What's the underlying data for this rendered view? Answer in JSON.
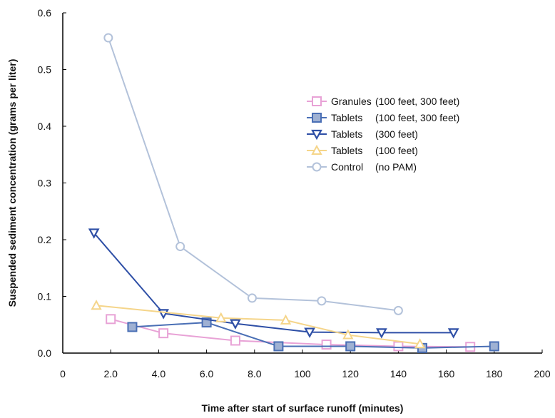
{
  "chart_data": {
    "type": "line",
    "xlabel": "Time after start of surface runoff (minutes)",
    "ylabel": "Suspended sediment concentration (grams per liter)",
    "x_tick_labels": [
      "0",
      "2.0",
      "4.0",
      "6.0",
      "8.0",
      "100",
      "120",
      "140",
      "160",
      "180",
      "200"
    ],
    "y_tick_labels": [
      "0.0",
      "0.1",
      "0.2",
      "0.3",
      "0.4",
      "0.5",
      "0.6"
    ],
    "xlim": [
      0,
      200
    ],
    "ylim": [
      0,
      0.6
    ],
    "grid": false,
    "legend_position": "center-right",
    "series": [
      {
        "name": "Granules",
        "detail": "(100 feet, 300 feet)",
        "marker": "square-open",
        "color": "#e8a2d6",
        "x": [
          20,
          42,
          72,
          110,
          140,
          170
        ],
        "y": [
          0.06,
          0.035,
          0.022,
          0.015,
          0.012,
          0.011
        ]
      },
      {
        "name": "Tablets",
        "detail": "(100 feet, 300 feet)",
        "marker": "square-filled",
        "color": "#4a6fb5",
        "x": [
          29,
          60,
          90,
          120,
          150,
          180
        ],
        "y": [
          0.046,
          0.054,
          0.012,
          0.012,
          0.009,
          0.012
        ]
      },
      {
        "name": "Tablets",
        "detail": "(300 feet)",
        "marker": "triangle-down",
        "color": "#2e4fa6",
        "x": [
          13,
          42,
          72,
          103,
          133,
          163
        ],
        "y": [
          0.212,
          0.07,
          0.052,
          0.037,
          0.036,
          0.036
        ]
      },
      {
        "name": "Tablets",
        "detail": "(100 feet)",
        "marker": "triangle-up",
        "color": "#f5d58a",
        "x": [
          14,
          66,
          93,
          119,
          149
        ],
        "y": [
          0.084,
          0.062,
          0.058,
          0.032,
          0.016
        ]
      },
      {
        "name": "Control",
        "detail": "(no PAM)",
        "marker": "circle",
        "color": "#b3c2da",
        "x": [
          19,
          49,
          79,
          108,
          140
        ],
        "y": [
          0.556,
          0.188,
          0.097,
          0.092,
          0.075
        ]
      }
    ]
  }
}
